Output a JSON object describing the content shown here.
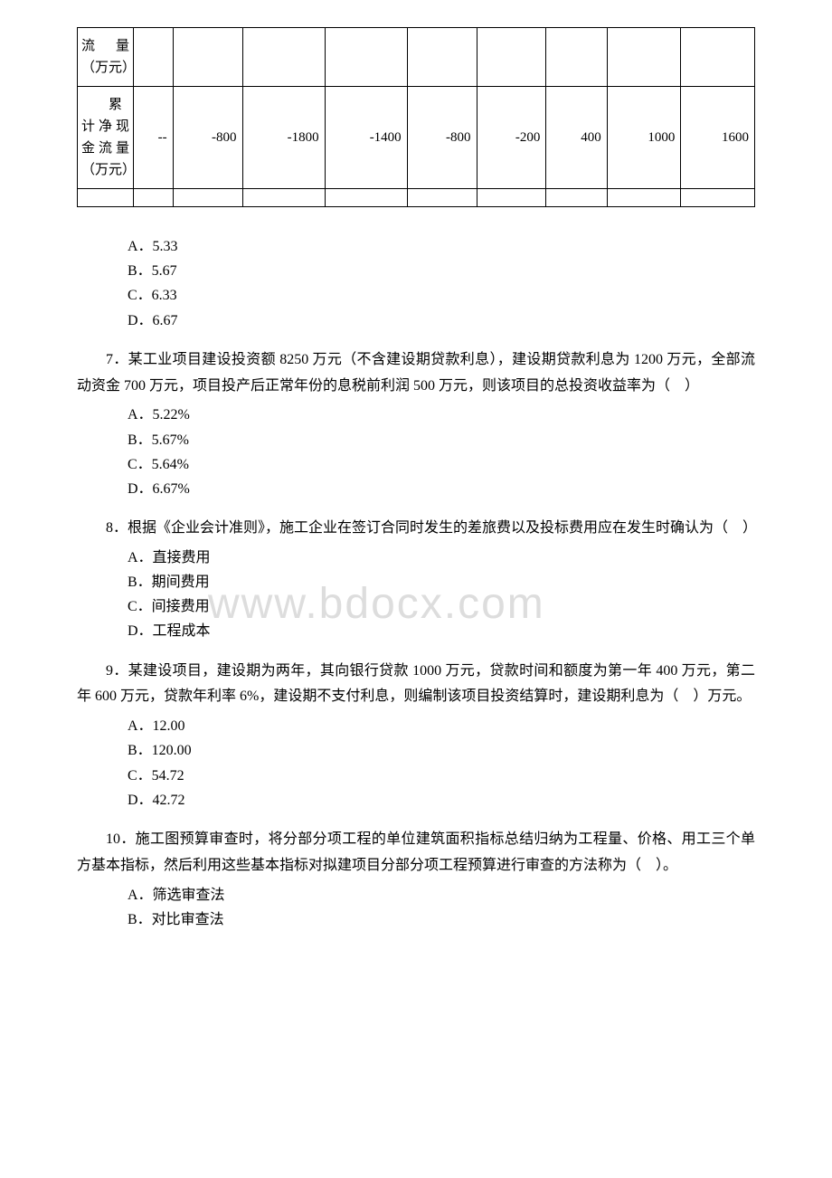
{
  "watermark": "www.bdocx.com",
  "table": {
    "row1": {
      "label": "流量（万元）",
      "cells": [
        "",
        "",
        "",
        "",
        "",
        "",
        "",
        "",
        ""
      ]
    },
    "row2": {
      "label": "累计净现金流量（万元）",
      "cells": [
        "--",
        "-800",
        "-1800",
        "-1400",
        "-800",
        "-200",
        "400",
        "1000",
        "1600"
      ]
    }
  },
  "q6": {
    "opts": {
      "a": "A．5.33",
      "b": "B．5.67",
      "c": "C．6.33",
      "d": "D．6.67"
    }
  },
  "q7": {
    "text": "7．某工业项目建设投资额 8250 万元（不含建设期贷款利息），建设期贷款利息为 1200 万元，全部流动资金 700 万元，项目投产后正常年份的息税前利润 500 万元，则该项目的总投资收益率为（　）",
    "opts": {
      "a": "A．5.22%",
      "b": "B．5.67%",
      "c": "C．5.64%",
      "d": "D．6.67%"
    }
  },
  "q8": {
    "text": "8．根据《企业会计准则》，施工企业在签订合同时发生的差旅费以及投标费用应在发生时确认为（　）",
    "opts": {
      "a": "A．直接费用",
      "b": "B．期间费用",
      "c": "C．间接费用",
      "d": "D．工程成本"
    }
  },
  "q9": {
    "text": "9．某建设项目，建设期为两年，其向银行贷款 1000 万元，贷款时间和额度为第一年 400 万元，第二年 600 万元，贷款年利率 6%，建设期不支付利息，则编制该项目投资结算时，建设期利息为（　）万元。",
    "opts": {
      "a": "A．12.00",
      "b": "B．120.00",
      "c": "C．54.72",
      "d": "D．42.72"
    }
  },
  "q10": {
    "text": "10．施工图预算审查时，将分部分项工程的单位建筑面积指标总结归纳为工程量、价格、用工三个单方基本指标，然后利用这些基本指标对拟建项目分部分项工程预算进行审查的方法称为（　）。",
    "opts": {
      "a": "A．筛选审查法",
      "b": "B．对比审查法"
    }
  }
}
